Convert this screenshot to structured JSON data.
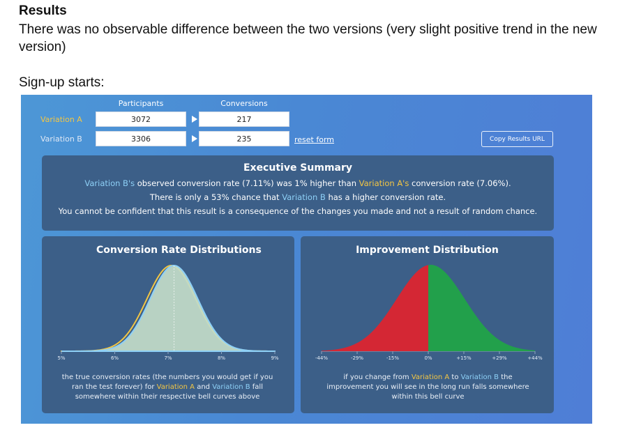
{
  "doc": {
    "heading": "Results",
    "paragraph": "There was no observable difference between the two versions (very slight positive trend in the new version)",
    "signup_label": "Sign-up starts:"
  },
  "calculator": {
    "participants_header": "Participants",
    "conversions_header": "Conversions",
    "variation_a": {
      "label": "Variation A",
      "participants": "3072",
      "conversions": "217"
    },
    "variation_b": {
      "label": "Variation B",
      "participants": "3306",
      "conversions": "235"
    },
    "reset_label": "reset form",
    "copy_label": "Copy Results URL"
  },
  "summary": {
    "title": "Executive Summary",
    "line1": {
      "b_name": "Variation B's",
      "mid": " observed conversion rate (7.11%) was 1% higher than ",
      "a_name": "Variation A's",
      "end": " conversion rate (7.06%)."
    },
    "line2": {
      "start": "There is only a 53% chance that ",
      "b_name": "Variation B",
      "end": " has a higher conversion rate."
    },
    "line3": "You cannot be confident that this result is a consequence of the changes you made and not a result of random chance."
  },
  "conversion_chart": {
    "title": "Conversion Rate Distributions",
    "ticks": [
      "5%",
      "6%",
      "7%",
      "8%",
      "9%"
    ],
    "caption": {
      "part1": "the true conversion rates (the numbers you would get if you ran the test forever) for ",
      "a_name": "Variation A",
      "and": " and ",
      "b_name": "Variation B",
      "part2": " fall somewhere within their respective bell curves above"
    }
  },
  "improvement_chart": {
    "title": "Improvement Distribution",
    "ticks": [
      "-44%",
      "-29%",
      "-15%",
      "0%",
      "+15%",
      "+29%",
      "+44%"
    ],
    "caption": {
      "part1": "if you change from ",
      "a_name": "Variation A",
      "to": " to ",
      "b_name": "Variation B",
      "part2": " the improvement you will see in the long run falls somewhere within this bell curve"
    }
  },
  "colors": {
    "variation_a": "#f3c644",
    "variation_b": "#8ed0f6",
    "negative": "#d42734",
    "positive": "#22a04b",
    "curve_fill": "#c3dcc8"
  },
  "chart_data": [
    {
      "type": "area",
      "title": "Conversion Rate Distributions",
      "x_ticks": [
        "5%",
        "6%",
        "7%",
        "8%",
        "9%"
      ],
      "xlim": [
        5,
        9
      ],
      "series": [
        {
          "name": "Variation A",
          "mean": 7.06,
          "sd": 0.46
        },
        {
          "name": "Variation B",
          "mean": 7.11,
          "sd": 0.45
        }
      ]
    },
    {
      "type": "area",
      "title": "Improvement Distribution",
      "x_ticks": [
        "-44%",
        "-29%",
        "-15%",
        "0%",
        "+15%",
        "+29%",
        "+44%"
      ],
      "xlim": [
        -44,
        44
      ],
      "series": [
        {
          "mean": 1,
          "sd": 14
        }
      ]
    }
  ]
}
